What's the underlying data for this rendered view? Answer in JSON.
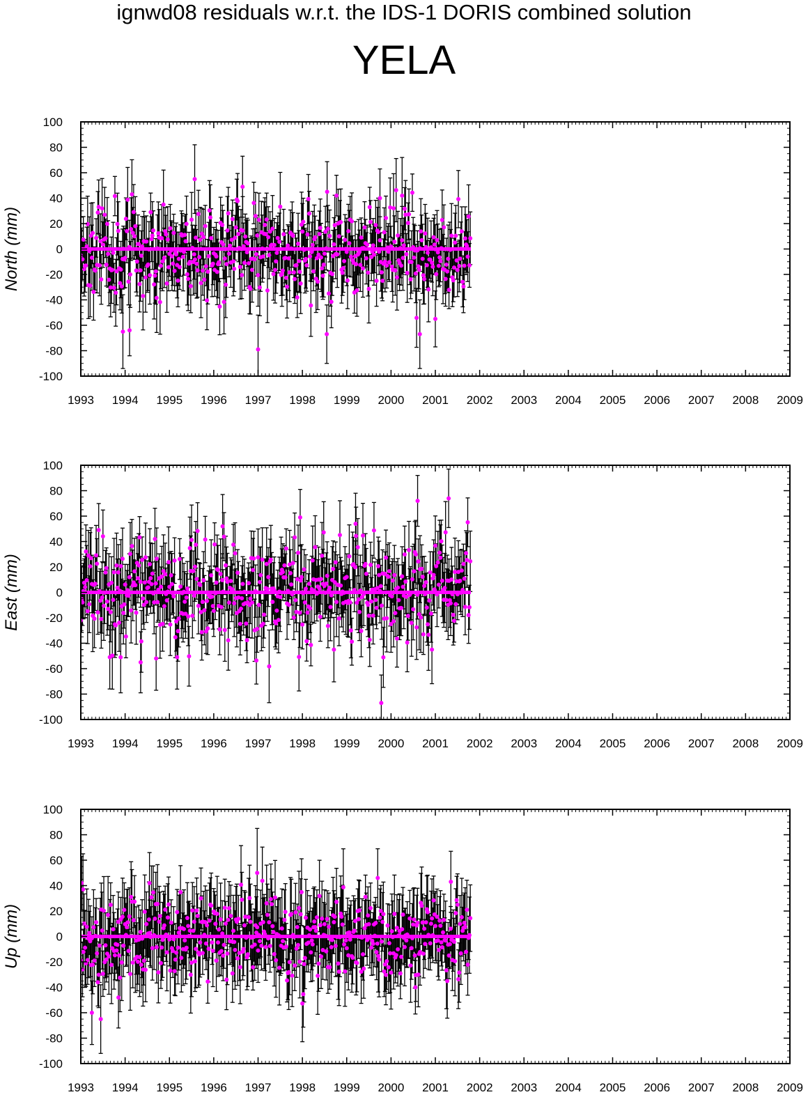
{
  "header": {
    "suptitle": "ignwd08 residuals w.r.t. the IDS-1 DORIS combined solution",
    "station": "YELA"
  },
  "colors": {
    "point": "#ff00ff",
    "errorbar": "#000000",
    "axis": "#000000"
  },
  "chart_data": [
    {
      "type": "scatter",
      "ylabel": "North (mm)",
      "xlim": [
        1993,
        2009
      ],
      "ylim": [
        -100,
        100
      ],
      "xticks": [
        "1993",
        "1994",
        "1995",
        "1996",
        "1997",
        "1998",
        "1999",
        "2000",
        "2001",
        "2002",
        "2003",
        "2004",
        "2005",
        "2006",
        "2007",
        "2008",
        "2009"
      ],
      "yticks": [
        "100",
        "80",
        "60",
        "40",
        "20",
        "0",
        "-20",
        "-40",
        "-60",
        "-80",
        "-100"
      ],
      "data_span": [
        1993.0,
        2001.8
      ],
      "seed": 11,
      "spread": 18,
      "mean_errorbar": 21,
      "highlights": [
        {
          "x": 1995.57,
          "y": 55,
          "err": 27
        },
        {
          "x": 1996.65,
          "y": 49,
          "err": 24
        },
        {
          "x": 1997.0,
          "y": -79,
          "err": 27
        },
        {
          "x": 1993.95,
          "y": -65,
          "err": 29
        },
        {
          "x": 1994.1,
          "y": -64,
          "err": 20
        },
        {
          "x": 1998.55,
          "y": -67,
          "err": 23
        },
        {
          "x": 2000.65,
          "y": -67,
          "err": 27
        },
        {
          "x": 2000.25,
          "y": 42,
          "err": 30
        },
        {
          "x": 1999.75,
          "y": 40,
          "err": 23
        },
        {
          "x": 2001.0,
          "y": -55,
          "err": 22
        }
      ]
    },
    {
      "type": "scatter",
      "ylabel": "East (mm)",
      "xlim": [
        1993,
        2009
      ],
      "ylim": [
        -100,
        100
      ],
      "xticks": [
        "1993",
        "1994",
        "1995",
        "1996",
        "1997",
        "1998",
        "1999",
        "2000",
        "2001",
        "2002",
        "2003",
        "2004",
        "2005",
        "2006",
        "2007",
        "2008",
        "2009"
      ],
      "yticks": [
        "100",
        "80",
        "60",
        "40",
        "20",
        "0",
        "-20",
        "-40",
        "-60",
        "-80",
        "-100"
      ],
      "data_span": [
        1993.0,
        2001.8
      ],
      "seed": 23,
      "spread": 20,
      "mean_errorbar": 22,
      "highlights": [
        {
          "x": 1999.78,
          "y": -87,
          "err": 22
        },
        {
          "x": 2000.6,
          "y": 72,
          "err": 20
        },
        {
          "x": 2001.3,
          "y": 74,
          "err": 23
        },
        {
          "x": 1997.95,
          "y": 59,
          "err": 22
        },
        {
          "x": 1999.2,
          "y": 54,
          "err": 24
        },
        {
          "x": 1996.2,
          "y": 52,
          "err": 25
        },
        {
          "x": 1994.35,
          "y": -55,
          "err": 24
        },
        {
          "x": 1994.7,
          "y": -52,
          "err": 25
        },
        {
          "x": 1993.9,
          "y": -51,
          "err": 28
        }
      ]
    },
    {
      "type": "scatter",
      "ylabel": "Up (mm)",
      "xlim": [
        1993,
        2009
      ],
      "ylim": [
        -100,
        100
      ],
      "xticks": [
        "1993",
        "1994",
        "1995",
        "1996",
        "1997",
        "1998",
        "1999",
        "2000",
        "2001",
        "2002",
        "2003",
        "2004",
        "2005",
        "2006",
        "2007",
        "2008",
        "2009"
      ],
      "yticks": [
        "100",
        "80",
        "60",
        "40",
        "20",
        "0",
        "-20",
        "-40",
        "-60",
        "-80",
        "-100"
      ],
      "data_span": [
        1993.0,
        2001.8
      ],
      "seed": 37,
      "spread": 17,
      "mean_errorbar": 24,
      "highlights": [
        {
          "x": 1996.98,
          "y": 50,
          "err": 35
        },
        {
          "x": 1993.45,
          "y": -65,
          "err": 27
        },
        {
          "x": 1993.25,
          "y": -60,
          "err": 25
        },
        {
          "x": 1993.85,
          "y": -48,
          "err": 24
        },
        {
          "x": 1993.05,
          "y": 37,
          "err": 28
        },
        {
          "x": 1994.55,
          "y": 42,
          "err": 24
        },
        {
          "x": 1999.7,
          "y": 46,
          "err": 23
        },
        {
          "x": 2001.35,
          "y": 43,
          "err": 24
        },
        {
          "x": 2000.55,
          "y": -40,
          "err": 21
        }
      ]
    }
  ]
}
